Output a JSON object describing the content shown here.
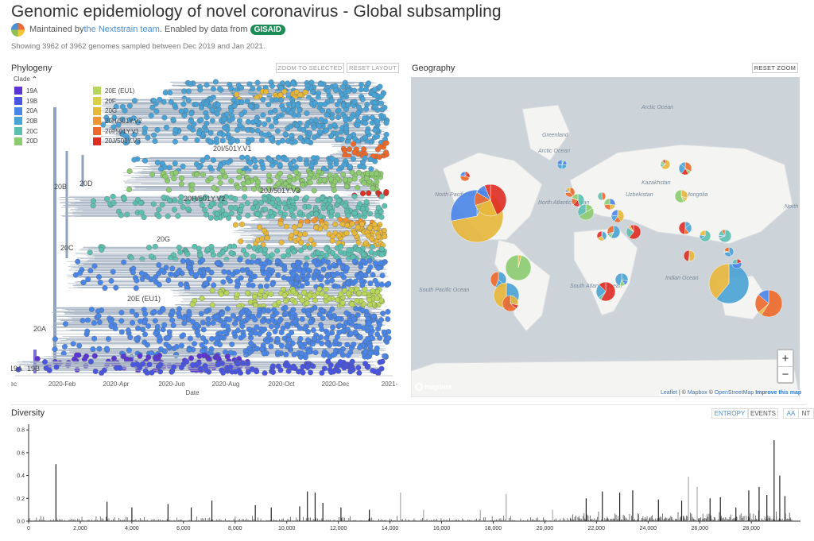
{
  "header": {
    "title": "Genomic epidemiology of novel coronavirus - Global subsampling",
    "maintained_prefix": "Maintained by ",
    "team_link": "the Nextstrain team",
    "enabled_text": ". Enabled by data from ",
    "gisaid": "GISAID",
    "showing": "Showing 3962 of 3962 genomes sampled between Dec 2019 and Jan 2021."
  },
  "phylogeny": {
    "title": "Phylogeny",
    "zoom_selected": "ZOOM TO SELECTED",
    "reset_layout": "RESET LAYOUT",
    "legend_title": "Clade",
    "legend_toggle": "^",
    "legend_col1": [
      {
        "label": "19A",
        "color": "#5c36d4"
      },
      {
        "label": "19B",
        "color": "#4a56e0"
      },
      {
        "label": "20A",
        "color": "#4a86e8"
      },
      {
        "label": "20B",
        "color": "#4aa3d6"
      },
      {
        "label": "20C",
        "color": "#5dbfb0"
      },
      {
        "label": "20D",
        "color": "#8ccb6f"
      }
    ],
    "legend_col2": [
      {
        "label": "20E (EU1)",
        "color": "#b8d65a"
      },
      {
        "label": "20F",
        "color": "#d9d046"
      },
      {
        "label": "20G",
        "color": "#e8b83b"
      },
      {
        "label": "20H/501Y.V2",
        "color": "#ef9633"
      },
      {
        "label": "20I/501Y.V1",
        "color": "#ee6a2c"
      },
      {
        "label": "20J/501Y.V3",
        "color": "#df2d24"
      }
    ],
    "branch_labels": [
      "20I/501Y.V1",
      "20D",
      "20B",
      "20J/501Y.V3",
      "20H/501Y.V2",
      "20G",
      "20C",
      "20E (EU1)",
      "20A",
      "19A",
      "19B"
    ],
    "x_ticks": [
      "Dec",
      "2020-Feb",
      "2020-Apr",
      "2020-Jun",
      "2020-Aug",
      "2020-Oct",
      "2020-Dec",
      "2021-"
    ],
    "x_label": "Date"
  },
  "geography": {
    "title": "Geography",
    "reset_zoom": "RESET ZOOM",
    "zoom_in": "+",
    "zoom_out": "−",
    "mapbox": "mapbox",
    "attribution_leaflet": "Leaflet",
    "attribution_sep1": " | © ",
    "attribution_mapbox": "Mapbox",
    "attribution_sep2": " © ",
    "attribution_osm": "OpenStreetMap",
    "attribution_improve": "Improve this map",
    "map_labels": [
      "Arctic Ocean",
      "Arctic Ocean",
      "Greenland",
      "North Atlantic Ocean",
      "South Atlantic Ocean",
      "South Pacific Ocean",
      "North Pacific Ocean",
      "Indian Ocean",
      "North Pacific Ocean",
      "Mongolia",
      "Uzbekistan",
      "Kazakhstan"
    ]
  },
  "diversity": {
    "title": "Diversity",
    "entropy": "ENTROPY",
    "events": "EVENTS",
    "aa": "AA",
    "nt": "NT"
  },
  "chart_data": {
    "type": "bar",
    "title": "Diversity",
    "xlabel": "",
    "ylabel": "",
    "x_ticks": [
      "0",
      "2,000",
      "4,000",
      "6,000",
      "8,000",
      "10,000",
      "12,000",
      "14,000",
      "16,000",
      "18,000",
      "20,000",
      "22,000",
      "24,000",
      "26,000",
      "28,000"
    ],
    "y_ticks": [
      "0.0",
      "0.2",
      "0.4",
      "0.6",
      "0.8"
    ],
    "xlim": [
      0,
      29903
    ],
    "ylim": [
      0,
      0.85
    ],
    "peaks": [
      {
        "x": 1059,
        "y": 0.5
      },
      {
        "x": 3037,
        "y": 0.17
      },
      {
        "x": 4000,
        "y": 0.12
      },
      {
        "x": 5400,
        "y": 0.15
      },
      {
        "x": 6300,
        "y": 0.12
      },
      {
        "x": 7100,
        "y": 0.18
      },
      {
        "x": 8782,
        "y": 0.14
      },
      {
        "x": 9400,
        "y": 0.12
      },
      {
        "x": 10500,
        "y": 0.13
      },
      {
        "x": 10800,
        "y": 0.26
      },
      {
        "x": 11100,
        "y": 0.25
      },
      {
        "x": 11400,
        "y": 0.16
      },
      {
        "x": 12100,
        "y": 0.12
      },
      {
        "x": 13200,
        "y": 0.1
      },
      {
        "x": 14408,
        "y": 0.25
      },
      {
        "x": 15300,
        "y": 0.1
      },
      {
        "x": 17500,
        "y": 0.1
      },
      {
        "x": 18500,
        "y": 0.24
      },
      {
        "x": 20300,
        "y": 0.1
      },
      {
        "x": 21600,
        "y": 0.2
      },
      {
        "x": 22227,
        "y": 0.26
      },
      {
        "x": 22900,
        "y": 0.25
      },
      {
        "x": 23403,
        "y": 0.27
      },
      {
        "x": 24400,
        "y": 0.19
      },
      {
        "x": 25300,
        "y": 0.18
      },
      {
        "x": 25563,
        "y": 0.39
      },
      {
        "x": 25900,
        "y": 0.3
      },
      {
        "x": 26400,
        "y": 0.2
      },
      {
        "x": 26800,
        "y": 0.21
      },
      {
        "x": 27400,
        "y": 0.12
      },
      {
        "x": 27900,
        "y": 0.27
      },
      {
        "x": 28300,
        "y": 0.3
      },
      {
        "x": 28600,
        "y": 0.23
      },
      {
        "x": 28881,
        "y": 0.71
      },
      {
        "x": 29100,
        "y": 0.4
      },
      {
        "x": 29300,
        "y": 0.22
      }
    ]
  }
}
